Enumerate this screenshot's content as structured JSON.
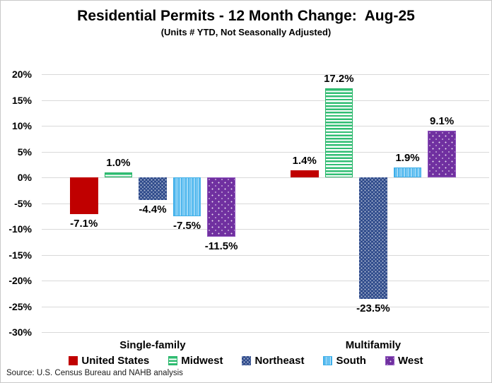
{
  "window": {
    "background": "#FFFFFF",
    "border_color": "#C9C9C9"
  },
  "header": {
    "title": "Residential Permits - 12 Month Change:  Aug-25",
    "subtitle": "(Units # YTD, Not Seasonally Adjusted)"
  },
  "footer": {
    "source": "Source: U.S. Census Bureau and NAHB analysis"
  },
  "chart_data": {
    "type": "bar",
    "title": "Residential Permits - 12 Month Change:  Aug-25",
    "subtitle": "(Units # YTD, Not Seasonally Adjusted)",
    "categories": [
      "Single-family",
      "Multifamily"
    ],
    "series": [
      {
        "name": "United States",
        "values": [
          -7.1,
          1.4
        ],
        "labels": [
          "-7.1%",
          "1.4%"
        ],
        "color": "#C00000",
        "pattern": "solid"
      },
      {
        "name": "Midwest",
        "values": [
          1.0,
          17.2
        ],
        "labels": [
          "1.0%",
          "17.2%"
        ],
        "color": "#30BE73",
        "pattern": "hstripes"
      },
      {
        "name": "Northeast",
        "values": [
          -4.4,
          -23.5
        ],
        "labels": [
          "-4.4%",
          "-23.5%"
        ],
        "color": "#2E4A8A",
        "pattern": "checkdots"
      },
      {
        "name": "South",
        "values": [
          -7.5,
          1.9
        ],
        "labels": [
          "-7.5%",
          "1.9%"
        ],
        "color": "#56BCF0",
        "pattern": "vstripes"
      },
      {
        "name": "West",
        "values": [
          -11.5,
          9.1
        ],
        "labels": [
          "-11.5%",
          "9.1%"
        ],
        "color": "#7030A0",
        "pattern": "dots"
      }
    ],
    "ylim": [
      -30,
      20
    ],
    "ytick_step": 5,
    "ytick_labels": [
      "20%",
      "15%",
      "10%",
      "5%",
      "0%",
      "-5%",
      "-10%",
      "-15%",
      "-20%",
      "-25%",
      "-30%"
    ],
    "grid": true,
    "legend_position": "bottom",
    "value_label_format": "0.0%"
  }
}
